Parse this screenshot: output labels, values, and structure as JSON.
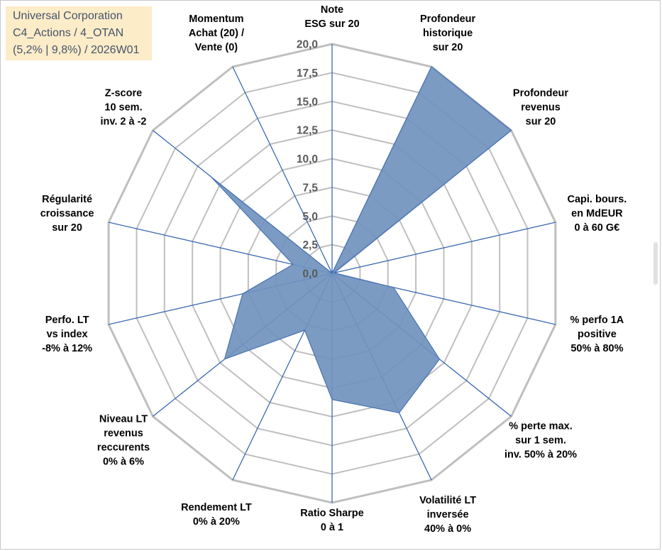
{
  "title_box": {
    "line1": "Universal Corporation",
    "line2": "C4_Actions / 4_OTAN",
    "line3": "(5,2% | 9,8%) / 2026W01"
  },
  "colors": {
    "fill": "#7092be",
    "stroke": "#4a73b3",
    "grid": "#bfbfbf",
    "spoke": "#2e5fae",
    "title_bg": "#fcecc8",
    "title_text": "#44546a"
  },
  "chart_data": {
    "type": "radar",
    "rmin": 0,
    "rmax": 20,
    "step": 2.5,
    "tick_labels": [
      "0,0",
      "2,5",
      "5,0",
      "7,5",
      "10,0",
      "12,5",
      "15,0",
      "17,5",
      "20,0"
    ],
    "axes": [
      {
        "label": [
          "Note",
          "ESG sur 20"
        ],
        "value": 0
      },
      {
        "label": [
          "Profondeur",
          "historique",
          "sur 20"
        ],
        "value": 20
      },
      {
        "label": [
          "Profondeur",
          "revenus",
          "sur 20"
        ],
        "value": 20
      },
      {
        "label": [
          "Capi. bours.",
          "en MdEUR",
          "0 à 60 G€"
        ],
        "value": 0.2
      },
      {
        "label": [
          "% perfo 1A",
          "positive",
          "50% à 80%"
        ],
        "value": 5.5
      },
      {
        "label": [
          "% perte max.",
          "sur 1 sem.",
          "inv. 50% à 20%"
        ],
        "value": 12
      },
      {
        "label": [
          "Volatilité LT",
          "inversée",
          "40% à 0%"
        ],
        "value": 13.5
      },
      {
        "label": [
          "Ratio Sharpe",
          "0 à 1"
        ],
        "value": 11
      },
      {
        "label": [
          "Rendement LT",
          "0% à 20%"
        ],
        "value": 5.5
      },
      {
        "label": [
          "Niveau LT",
          "revenus",
          "reccurents",
          "0% à 6%"
        ],
        "value": 12
      },
      {
        "label": [
          "Perfo. LT",
          "vs index",
          "-8% à 12%"
        ],
        "value": 8
      },
      {
        "label": [
          "Régularité",
          "croissance",
          "sur 20"
        ],
        "value": 3.5
      },
      {
        "label": [
          "Z-score",
          "10 sem.",
          "inv. 2 à -2"
        ],
        "value": 13.5
      },
      {
        "label": [
          "Momentum",
          "Achat (20) /",
          "Vente (0)"
        ],
        "value": 0
      }
    ]
  }
}
